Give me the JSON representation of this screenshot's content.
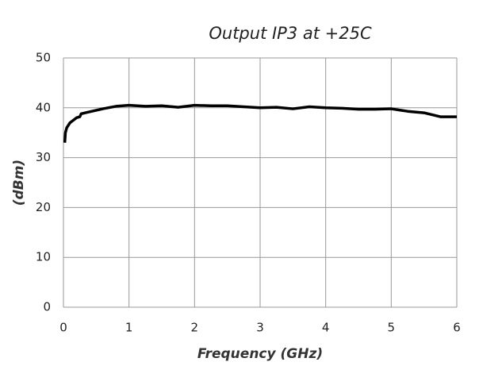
{
  "chart_data": {
    "type": "line",
    "title": "Output IP3 at +25C",
    "x_label": "Frequency (GHz)",
    "y_label": "(dBm)",
    "x": [
      0.02,
      0.03,
      0.05,
      0.1,
      0.15,
      0.2,
      0.25,
      0.27,
      0.4,
      0.6,
      0.8,
      1.0,
      1.25,
      1.5,
      1.75,
      2.0,
      2.25,
      2.5,
      2.75,
      3.0,
      3.25,
      3.5,
      3.75,
      4.0,
      4.25,
      4.5,
      4.75,
      5.0,
      5.25,
      5.5,
      5.75,
      6.0
    ],
    "series": [
      {
        "color": "#000000",
        "values": [
          33,
          35,
          36,
          37,
          37.5,
          38,
          38.2,
          38.8,
          39.2,
          39.8,
          40.3,
          40.5,
          40.3,
          40.4,
          40.1,
          40.5,
          40.4,
          40.4,
          40.2,
          40.0,
          40.1,
          39.8,
          40.2,
          40.0,
          39.9,
          39.7,
          39.7,
          39.8,
          39.3,
          39.0,
          38.2,
          38.2
        ]
      }
    ],
    "xlim": [
      0,
      6
    ],
    "ylim": [
      0,
      50
    ],
    "xticks": [
      0,
      1,
      2,
      3,
      4,
      5,
      6
    ],
    "yticks": [
      0,
      10,
      20,
      30,
      40,
      50
    ],
    "grid": true
  }
}
